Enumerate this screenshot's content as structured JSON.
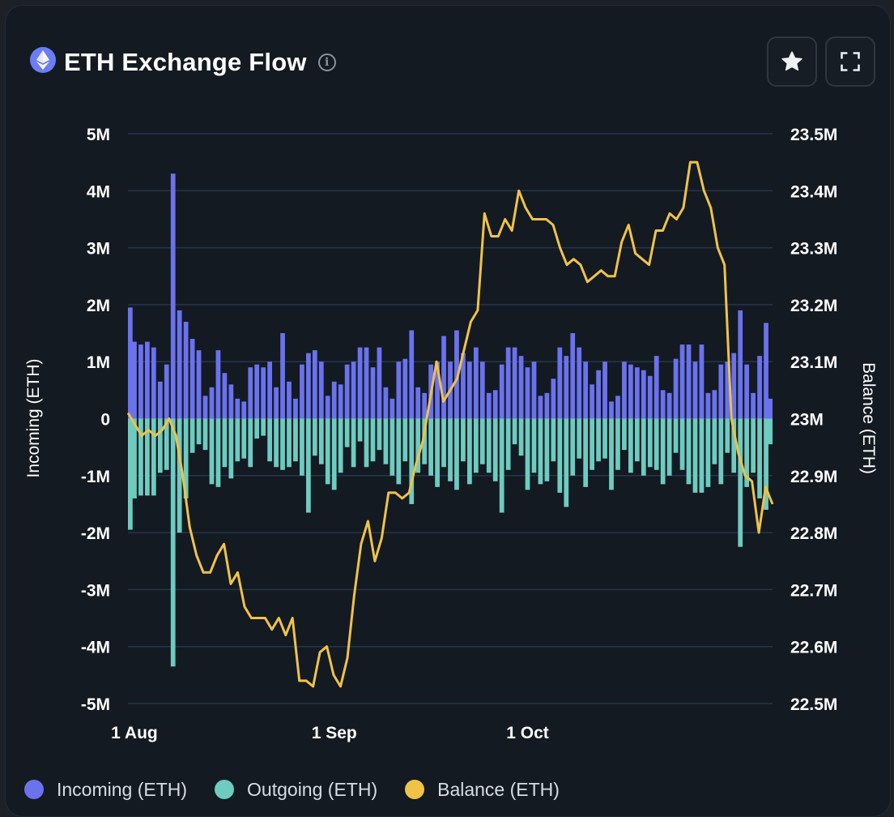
{
  "header": {
    "title": "ETH Exchange Flow",
    "info_glyph": "i",
    "logo_icon": "ethereum-logo-icon",
    "favorite_icon": "star-icon",
    "fullscreen_icon": "expand-icon"
  },
  "colors": {
    "incoming": "#6b72ee",
    "outgoing": "#6ecbc0",
    "balance": "#f0c248",
    "grid": "#273549",
    "text": "#ffffff"
  },
  "chart_data": {
    "type": "bar+line",
    "x_start": "2023-07-31",
    "x_ticks": [
      {
        "date": "2023-08-01",
        "label": "1 Aug"
      },
      {
        "date": "2023-09-01",
        "label": "1 Sep"
      },
      {
        "date": "2023-10-01",
        "label": "1 Oct"
      }
    ],
    "y_left": {
      "label": "Incoming (ETH)",
      "min": -5000000,
      "max": 5000000,
      "ticks": [
        "5M",
        "4M",
        "3M",
        "2M",
        "1M",
        "0",
        "-1M",
        "-2M",
        "-3M",
        "-4M",
        "-5M"
      ]
    },
    "y_right": {
      "label": "Balance (ETH)",
      "min": 22500000,
      "max": 23500000,
      "ticks": [
        "23.5M",
        "23.4M",
        "23.3M",
        "23.2M",
        "23.1M",
        "23M",
        "22.9M",
        "22.8M",
        "22.7M",
        "22.6M",
        "22.5M"
      ]
    },
    "grid": true,
    "legend_position": "bottom-left",
    "series": [
      {
        "name": "Incoming (ETH)",
        "kind": "bar",
        "unit": "M",
        "values": [
          1.95,
          1.35,
          1.3,
          1.35,
          1.25,
          0.65,
          0.95,
          4.3,
          1.9,
          1.7,
          1.4,
          1.2,
          0.4,
          0.55,
          1.2,
          0.8,
          0.6,
          0.35,
          0.3,
          0.9,
          0.95,
          0.9,
          1.0,
          0.55,
          1.5,
          0.65,
          0.35,
          0.95,
          1.15,
          1.2,
          1.0,
          0.4,
          0.65,
          0.6,
          0.95,
          1.0,
          1.25,
          1.25,
          0.9,
          1.25,
          0.55,
          0.35,
          1.0,
          1.05,
          1.55,
          0.55,
          0.45,
          0.95,
          1.0,
          1.45,
          1.0,
          1.55,
          1.15,
          1.0,
          1.25,
          1.0,
          0.45,
          0.5,
          0.95,
          1.25,
          1.25,
          1.1,
          0.9,
          1.0,
          0.4,
          0.45,
          0.7,
          1.25,
          1.1,
          1.5,
          1.25,
          1.0,
          0.6,
          0.85,
          1.0,
          0.3,
          0.4,
          1.0,
          0.95,
          0.9,
          0.85,
          0.75,
          1.1,
          0.5,
          0.45,
          1.05,
          1.3,
          1.3,
          1.0,
          1.3,
          0.45,
          0.5,
          0.95,
          1.0,
          1.15,
          1.9,
          0.95,
          0.45,
          1.1,
          1.68,
          0.35
        ],
        "outgoing": [
          -1.95,
          -1.4,
          -1.35,
          -1.35,
          -1.35,
          -0.95,
          -0.9,
          -4.35,
          -2.0,
          -1.4,
          -0.6,
          -0.45,
          -0.55,
          -1.15,
          -1.2,
          -0.85,
          -1.05,
          -0.75,
          -0.7,
          -0.85,
          -0.35,
          -0.3,
          -0.75,
          -0.85,
          -0.9,
          -0.85,
          -0.75,
          -1.0,
          -1.65,
          -0.65,
          -0.8,
          -1.15,
          -1.25,
          -0.95,
          -0.5,
          -0.85,
          -0.4,
          -0.85,
          -0.75,
          -0.55,
          -0.8,
          -1.0,
          -1.15,
          -0.75,
          -1.5,
          -0.95,
          -0.8,
          -1.0,
          -1.2,
          -0.85,
          -1.1,
          -1.25,
          -0.75,
          -1.15,
          -0.95,
          -0.8,
          -0.95,
          -1.1,
          -1.65,
          -0.9,
          -0.45,
          -0.65,
          -1.25,
          -0.95,
          -1.15,
          -1.1,
          -0.75,
          -1.3,
          -1.55,
          -1.0,
          -0.7,
          -1.2,
          -0.9,
          -0.75,
          -0.7,
          -1.25,
          -0.9,
          -0.55,
          -0.95,
          -0.75,
          -1.0,
          -0.85,
          -0.9,
          -1.15,
          -1.0,
          -0.6,
          -0.9,
          -1.15,
          -1.3,
          -1.3,
          -1.2,
          -0.8,
          -1.15,
          -0.6,
          -0.95,
          -2.25,
          -1.2,
          -0.95,
          -1.4,
          -1.6,
          -0.45
        ]
      },
      {
        "name": "Outgoing (ETH)",
        "kind": "bar"
      },
      {
        "name": "Balance (ETH)",
        "kind": "line",
        "axis": "right",
        "unit": "M",
        "values": [
          23.01,
          22.99,
          22.97,
          22.98,
          22.97,
          22.98,
          23.0,
          22.97,
          22.9,
          22.81,
          22.76,
          22.73,
          22.73,
          22.76,
          22.78,
          22.71,
          22.73,
          22.67,
          22.65,
          22.65,
          22.65,
          22.63,
          22.65,
          22.62,
          22.65,
          22.54,
          22.54,
          22.53,
          22.59,
          22.6,
          22.55,
          22.53,
          22.58,
          22.69,
          22.78,
          22.82,
          22.75,
          22.79,
          22.87,
          22.87,
          22.86,
          22.87,
          22.92,
          22.96,
          23.03,
          23.1,
          23.03,
          23.05,
          23.07,
          23.12,
          23.17,
          23.19,
          23.36,
          23.32,
          23.32,
          23.35,
          23.33,
          23.4,
          23.37,
          23.35,
          23.35,
          23.35,
          23.34,
          23.3,
          23.27,
          23.28,
          23.27,
          23.24,
          23.25,
          23.26,
          23.25,
          23.25,
          23.31,
          23.34,
          23.29,
          23.28,
          23.27,
          23.33,
          23.33,
          23.36,
          23.35,
          23.37,
          23.45,
          23.45,
          23.4,
          23.37,
          23.3,
          23.27,
          23.0,
          22.94,
          22.9,
          22.89,
          22.8,
          22.88,
          22.85
        ]
      }
    ]
  },
  "legend": {
    "items": [
      {
        "label": "Incoming (ETH)",
        "color": "#6b72ee"
      },
      {
        "label": "Outgoing (ETH)",
        "color": "#6ecbc0"
      },
      {
        "label": "Balance (ETH)",
        "color": "#f0c248"
      }
    ]
  }
}
